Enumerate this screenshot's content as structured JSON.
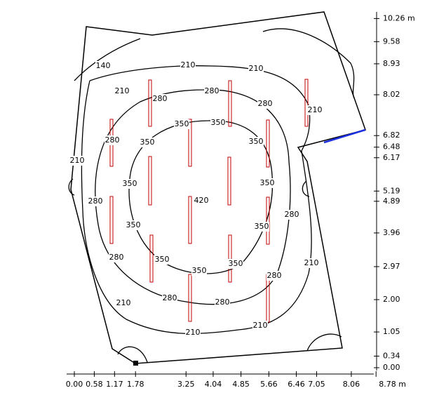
{
  "x_axis": {
    "labels": [
      "0.00",
      "0.58",
      "1.17",
      "1.78",
      "3.25",
      "4.04",
      "4.85",
      "5.66",
      "6.46",
      "7.05",
      "8.06",
      "8.78 m"
    ]
  },
  "y_axis": {
    "labels": [
      "0.00",
      "0.34",
      "1.05",
      "2.00",
      "2.97",
      "3.96",
      "4.89",
      "5.19",
      "6.17",
      "6.48",
      "6.82",
      "8.02",
      "8.93",
      "9.58",
      "10.26 m"
    ]
  },
  "contour_labels": [
    140,
    210,
    210,
    210,
    280,
    280,
    280,
    210,
    350,
    350,
    280,
    350,
    350,
    210,
    350,
    350,
    420,
    280,
    280,
    350,
    350,
    280,
    350,
    350,
    350,
    280,
    210,
    280,
    280,
    210,
    210,
    210
  ]
}
